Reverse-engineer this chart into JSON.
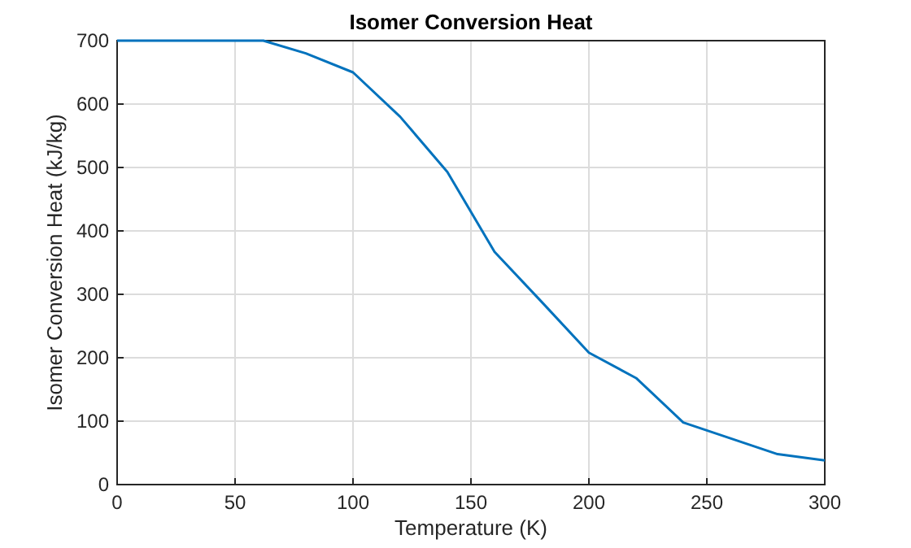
{
  "chart_data": {
    "type": "line",
    "title": "Isomer Conversion Heat",
    "xlabel": "Temperature (K)",
    "ylabel": "Isomer Conversion Heat (kJ/kg)",
    "x": [
      0,
      62,
      80,
      100,
      120,
      140,
      160,
      180,
      200,
      220,
      240,
      260,
      280,
      300
    ],
    "series": [
      {
        "color": "#0072bd",
        "values": [
          700,
          700,
          680,
          650,
          580,
          493,
          367,
          288,
          208,
          168,
          98,
          73,
          48,
          38
        ]
      }
    ],
    "xlim": [
      0,
      300
    ],
    "ylim": [
      0,
      700
    ],
    "xticks": [
      0,
      50,
      100,
      150,
      200,
      250,
      300
    ],
    "yticks": [
      0,
      100,
      200,
      300,
      400,
      500,
      600,
      700
    ],
    "grid": true,
    "marker": "none",
    "line_style": "solid"
  }
}
